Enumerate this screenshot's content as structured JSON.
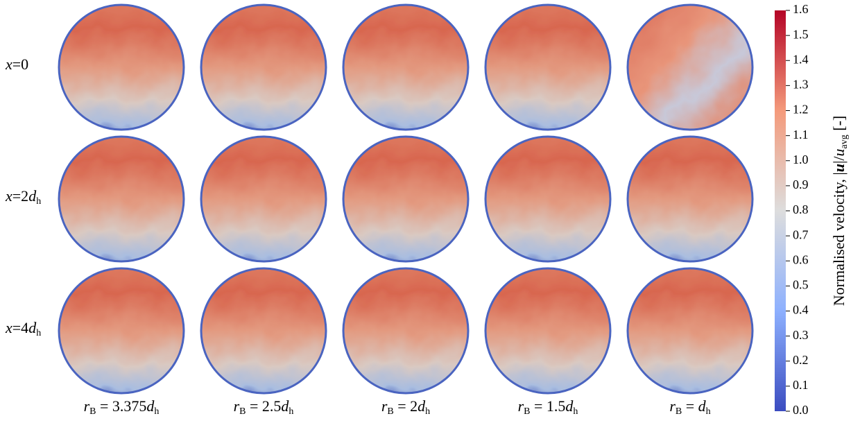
{
  "figure": {
    "row_labels": [
      [
        {
          "text": "x",
          "style": "italic"
        },
        {
          "text": "=0",
          "style": "normal"
        }
      ],
      [
        {
          "text": "x",
          "style": "italic"
        },
        {
          "text": "=2",
          "style": "normal"
        },
        {
          "text": "d",
          "style": "italic"
        },
        {
          "text": "h",
          "style": "sub"
        }
      ],
      [
        {
          "text": "x",
          "style": "italic"
        },
        {
          "text": "=4",
          "style": "normal"
        },
        {
          "text": "d",
          "style": "italic"
        },
        {
          "text": "h",
          "style": "sub"
        }
      ]
    ],
    "column_labels": [
      [
        {
          "text": "r",
          "style": "italic"
        },
        {
          "text": "B",
          "style": "sub"
        },
        {
          "text": " = 3.375",
          "style": "normal"
        },
        {
          "text": "d",
          "style": "italic"
        },
        {
          "text": "h",
          "style": "sub"
        }
      ],
      [
        {
          "text": "r",
          "style": "italic"
        },
        {
          "text": "B",
          "style": "sub"
        },
        {
          "text": " = 2.5",
          "style": "normal"
        },
        {
          "text": "d",
          "style": "italic"
        },
        {
          "text": "h",
          "style": "sub"
        }
      ],
      [
        {
          "text": "r",
          "style": "italic"
        },
        {
          "text": "B",
          "style": "sub"
        },
        {
          "text": " = 2",
          "style": "normal"
        },
        {
          "text": "d",
          "style": "italic"
        },
        {
          "text": "h",
          "style": "sub"
        }
      ],
      [
        {
          "text": "r",
          "style": "italic"
        },
        {
          "text": "B",
          "style": "sub"
        },
        {
          "text": " = 1.5",
          "style": "normal"
        },
        {
          "text": "d",
          "style": "italic"
        },
        {
          "text": "h",
          "style": "sub"
        }
      ],
      [
        {
          "text": "r",
          "style": "italic"
        },
        {
          "text": "B",
          "style": "sub"
        },
        {
          "text": " = ",
          "style": "normal"
        },
        {
          "text": "d",
          "style": "italic"
        },
        {
          "text": "h",
          "style": "sub"
        }
      ]
    ],
    "colorbar": {
      "label": [
        {
          "text": "Normalised velocity, |",
          "style": "normal"
        },
        {
          "text": "u",
          "style": "bolditalic"
        },
        {
          "text": "|/",
          "style": "normal"
        },
        {
          "text": "u",
          "style": "italic"
        },
        {
          "text": "avg",
          "style": "sub"
        },
        {
          "text": " [-]",
          "style": "normal"
        }
      ],
      "lim": [
        0,
        1.6
      ],
      "ticks": [
        {
          "value": 0,
          "label": "0.0"
        },
        {
          "value": 0.1,
          "label": "0.1"
        },
        {
          "value": 0.2,
          "label": "0.2"
        },
        {
          "value": 0.3,
          "label": "0.3"
        },
        {
          "value": 0.4,
          "label": "0.4"
        },
        {
          "value": 0.5,
          "label": "0.5"
        },
        {
          "value": 0.6,
          "label": "0.6"
        },
        {
          "value": 0.7,
          "label": "0.7"
        },
        {
          "value": 0.8,
          "label": "0.8"
        },
        {
          "value": 0.9,
          "label": "0.9"
        },
        {
          "value": 1,
          "label": "1.0"
        },
        {
          "value": 1.1,
          "label": "1.1"
        },
        {
          "value": 1.2,
          "label": "1.2"
        },
        {
          "value": 1.3,
          "label": "1.3"
        },
        {
          "value": 1.4,
          "label": "1.4"
        },
        {
          "value": 1.5,
          "label": "1.5"
        },
        {
          "value": 1.6,
          "label": "1.6"
        }
      ]
    }
  }
}
